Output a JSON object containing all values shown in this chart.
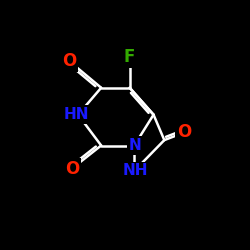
{
  "background": "#000000",
  "bond_color": "#ffffff",
  "colors": {
    "O": "#ff2200",
    "N": "#1a1aff",
    "F": "#33aa00",
    "C": "#ffffff"
  },
  "figsize": [
    2.5,
    2.5
  ],
  "dpi": 100,
  "lw": 1.8,
  "dbl_off": 3.2,
  "dbl_sh": 0.13
}
